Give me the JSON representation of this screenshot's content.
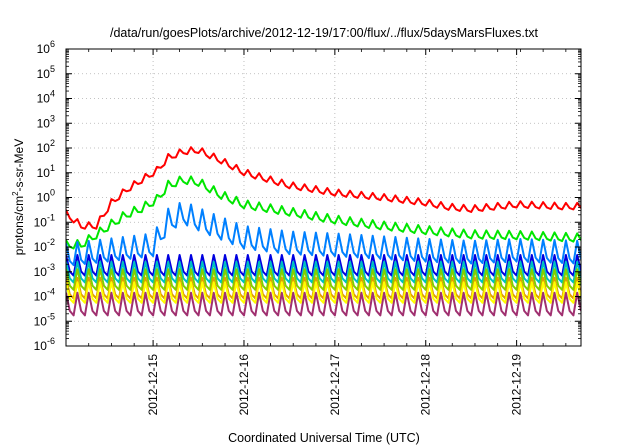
{
  "chart_data": {
    "type": "line",
    "title": "/data/run/goesPlots/archive/2012-12-19/17:00/flux/../flux/5daysMarsFluxes.txt",
    "xlabel": "Coordinated Universal Time (UTC)",
    "ylabel": {
      "prefix": "protons/cm",
      "sup": "2",
      "suffix": "-s-sr-MeV"
    },
    "y_scale": "log",
    "ylim": [
      1e-06,
      1000000.0
    ],
    "y_ticks": [
      {
        "value": 1000000.0,
        "base": "10",
        "exp": "6"
      },
      {
        "value": 100000.0,
        "base": "10",
        "exp": "5"
      },
      {
        "value": 10000.0,
        "base": "10",
        "exp": "4"
      },
      {
        "value": 1000.0,
        "base": "10",
        "exp": "3"
      },
      {
        "value": 100.0,
        "base": "10",
        "exp": "2"
      },
      {
        "value": 10.0,
        "base": "10",
        "exp": "1"
      },
      {
        "value": 1.0,
        "base": "10",
        "exp": "0"
      },
      {
        "value": 0.1,
        "base": "10",
        "exp": "-1"
      },
      {
        "value": 0.01,
        "base": "10",
        "exp": "-2"
      },
      {
        "value": 0.001,
        "base": "10",
        "exp": "-3"
      },
      {
        "value": 0.0001,
        "base": "10",
        "exp": "-4"
      },
      {
        "value": 1e-05,
        "base": "10",
        "exp": "-5"
      },
      {
        "value": 1e-06,
        "base": "10",
        "exp": "-6"
      }
    ],
    "x_ticks": [
      "2012-12-15",
      "2012-12-16",
      "2012-12-17",
      "2012-12-18",
      "2012-12-19"
    ],
    "xlim": [
      "2012-12-14T01:00",
      "2012-12-19T17:00"
    ],
    "grid": true,
    "legend": "none",
    "series": [
      {
        "color": "#ff0000",
        "style": "smooth",
        "x": [
          "2012-12-14T01:00",
          "2012-12-14T05:00",
          "2012-12-14T09:00",
          "2012-12-14T13:00",
          "2012-12-14T17:00",
          "2012-12-14T21:00",
          "2012-12-15T01:00",
          "2012-12-15T04:00",
          "2012-12-15T08:00",
          "2012-12-15T12:00",
          "2012-12-15T18:00",
          "2012-12-16T00:00",
          "2012-12-16T12:00",
          "2012-12-17T00:00",
          "2012-12-17T12:00",
          "2012-12-18T00:00",
          "2012-12-18T06:00",
          "2012-12-18T12:00",
          "2012-12-19T00:00",
          "2012-12-19T12:00",
          "2012-12-19T17:00"
        ],
        "values": [
          0.22,
          0.07,
          0.07,
          0.6,
          2,
          5,
          12,
          40,
          70,
          80,
          30,
          10,
          3,
          1.5,
          1.0,
          0.6,
          0.4,
          0.33,
          0.5,
          0.42,
          0.42
        ]
      },
      {
        "color": "#00e600",
        "style": "smooth",
        "x": [
          "2012-12-14T01:00",
          "2012-12-14T05:00",
          "2012-12-14T09:00",
          "2012-12-14T13:00",
          "2012-12-14T17:00",
          "2012-12-14T21:00",
          "2012-12-15T01:00",
          "2012-12-15T04:00",
          "2012-12-15T08:00",
          "2012-12-15T12:00",
          "2012-12-15T18:00",
          "2012-12-16T00:00",
          "2012-12-16T12:00",
          "2012-12-17T00:00",
          "2012-12-17T12:00",
          "2012-12-18T00:00",
          "2012-12-18T12:00",
          "2012-12-19T00:00",
          "2012-12-19T17:00"
        ],
        "values": [
          0.012,
          0.012,
          0.03,
          0.08,
          0.2,
          0.35,
          0.8,
          3,
          5,
          4,
          1.2,
          0.5,
          0.25,
          0.12,
          0.07,
          0.045,
          0.03,
          0.028,
          0.022
        ]
      },
      {
        "color": "#0080ff",
        "style": "zigzag",
        "x": [
          "2012-12-14T01:00",
          "2012-12-14T12:00",
          "2012-12-15T00:00",
          "2012-12-15T04:00",
          "2012-12-15T08:00",
          "2012-12-15T14:00",
          "2012-12-16T00:00",
          "2012-12-16T12:00",
          "2012-12-17T00:00",
          "2012-12-18T00:00",
          "2012-12-18T12:00",
          "2012-12-19T00:00",
          "2012-12-19T17:00"
        ],
        "values": [
          0.004,
          0.006,
          0.01,
          0.1,
          0.2,
          0.08,
          0.02,
          0.012,
          0.01,
          0.006,
          0.005,
          0.006,
          0.005
        ]
      },
      {
        "color": "#0000e0",
        "style": "zigzag",
        "x": [
          "2012-12-14T01:00",
          "2012-12-19T17:00"
        ],
        "values": [
          0.0015,
          0.0015
        ]
      },
      {
        "color": "#00c0c0",
        "style": "zigzag",
        "x": [
          "2012-12-14T01:00",
          "2012-12-19T17:00"
        ],
        "values": [
          0.0008,
          0.0008
        ]
      },
      {
        "color": "#80d000",
        "style": "zigzag",
        "x": [
          "2012-12-14T01:00",
          "2012-12-19T17:00"
        ],
        "values": [
          0.0004,
          0.0004
        ]
      },
      {
        "color": "#e0a000",
        "style": "zigzag",
        "x": [
          "2012-12-14T01:00",
          "2012-12-19T17:00"
        ],
        "values": [
          0.00018,
          0.00018
        ]
      },
      {
        "color": "#ffff00",
        "style": "zigzag",
        "x": [
          "2012-12-14T01:00",
          "2012-12-19T17:00"
        ],
        "values": [
          0.00012,
          0.00012
        ]
      },
      {
        "color": "#a03070",
        "style": "zigzag",
        "x": [
          "2012-12-14T01:00",
          "2012-12-19T17:00"
        ],
        "values": [
          4e-05,
          4e-05
        ]
      }
    ]
  }
}
